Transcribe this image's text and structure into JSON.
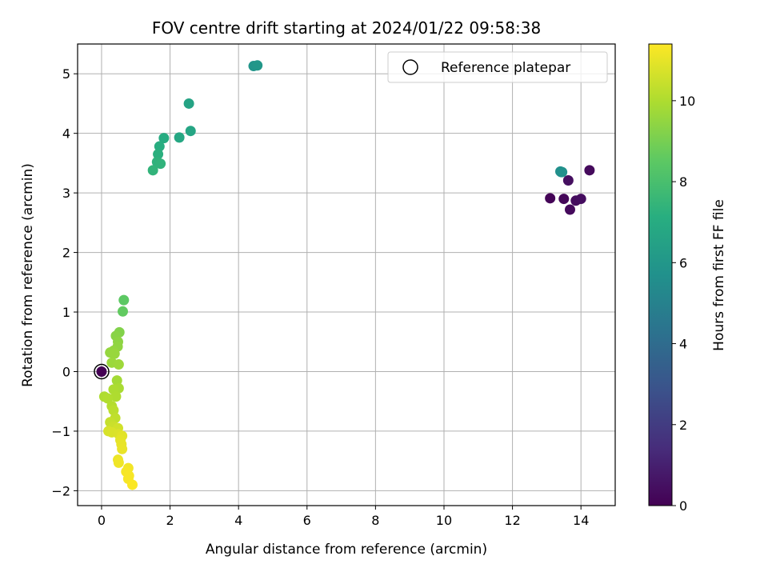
{
  "chart_data": {
    "type": "scatter",
    "title": "FOV centre drift starting at 2024/01/22 09:58:38",
    "xlabel": "Angular distance from reference (arcmin)",
    "ylabel": "Rotation from reference (arcmin)",
    "xlim": [
      -0.7,
      15.0
    ],
    "ylim": [
      -2.25,
      5.5
    ],
    "xticks": [
      0,
      2,
      4,
      6,
      8,
      10,
      12,
      14
    ],
    "yticks": [
      -2,
      -1,
      0,
      1,
      2,
      3,
      4,
      5
    ],
    "grid": true,
    "legend": {
      "placement": "top-right",
      "entries": [
        "Reference platepar"
      ]
    },
    "colorbar": {
      "label": "Hours from first FF file",
      "range": [
        0,
        11.4
      ],
      "ticks": [
        0,
        2,
        4,
        6,
        8,
        10
      ],
      "colormap": "viridis"
    },
    "reference_point": {
      "x": 0,
      "y": 0
    },
    "points": [
      {
        "x": 13.1,
        "y": 2.91,
        "c": 0.1
      },
      {
        "x": 13.5,
        "y": 2.9,
        "c": 0.2
      },
      {
        "x": 13.68,
        "y": 2.72,
        "c": 0.3
      },
      {
        "x": 13.85,
        "y": 2.87,
        "c": 0.35
      },
      {
        "x": 14.0,
        "y": 2.9,
        "c": 0.4
      },
      {
        "x": 13.63,
        "y": 3.21,
        "c": 0.45
      },
      {
        "x": 14.25,
        "y": 3.38,
        "c": 0.3
      },
      {
        "x": 13.42,
        "y": 3.35,
        "c": 5.5
      },
      {
        "x": 13.4,
        "y": 3.36,
        "c": 5.6
      },
      {
        "x": 13.45,
        "y": 3.35,
        "c": 5.7
      },
      {
        "x": 4.44,
        "y": 5.13,
        "c": 5.9
      },
      {
        "x": 4.55,
        "y": 5.14,
        "c": 6.0
      },
      {
        "x": 2.55,
        "y": 4.5,
        "c": 6.6
      },
      {
        "x": 2.6,
        "y": 4.04,
        "c": 6.7
      },
      {
        "x": 2.27,
        "y": 3.93,
        "c": 6.8
      },
      {
        "x": 1.82,
        "y": 3.92,
        "c": 7.0
      },
      {
        "x": 1.69,
        "y": 3.78,
        "c": 7.1
      },
      {
        "x": 1.65,
        "y": 3.65,
        "c": 7.2
      },
      {
        "x": 1.62,
        "y": 3.52,
        "c": 7.3
      },
      {
        "x": 1.72,
        "y": 3.49,
        "c": 7.35
      },
      {
        "x": 1.5,
        "y": 3.38,
        "c": 7.4
      },
      {
        "x": 0.65,
        "y": 1.2,
        "c": 8.5
      },
      {
        "x": 0.62,
        "y": 1.01,
        "c": 8.6
      },
      {
        "x": 0.52,
        "y": 0.66,
        "c": 9.2
      },
      {
        "x": 0.42,
        "y": 0.6,
        "c": 9.3
      },
      {
        "x": 0.48,
        "y": 0.5,
        "c": 9.4
      },
      {
        "x": 0.47,
        "y": 0.42,
        "c": 9.45
      },
      {
        "x": 0.35,
        "y": 0.35,
        "c": 9.5
      },
      {
        "x": 0.25,
        "y": 0.32,
        "c": 9.55
      },
      {
        "x": 0.38,
        "y": 0.3,
        "c": 9.6
      },
      {
        "x": 0.3,
        "y": 0.15,
        "c": 9.65
      },
      {
        "x": 0.5,
        "y": 0.12,
        "c": 9.7
      },
      {
        "x": 0.45,
        "y": -0.15,
        "c": 9.8
      },
      {
        "x": 0.5,
        "y": -0.28,
        "c": 9.9
      },
      {
        "x": 0.35,
        "y": -0.3,
        "c": 9.95
      },
      {
        "x": 0.42,
        "y": -0.42,
        "c": 10.0
      },
      {
        "x": 0.08,
        "y": -0.42,
        "c": 10.0
      },
      {
        "x": 0.18,
        "y": -0.45,
        "c": 10.05
      },
      {
        "x": 0.3,
        "y": -0.58,
        "c": 10.1
      },
      {
        "x": 0.35,
        "y": -0.65,
        "c": 10.2
      },
      {
        "x": 0.4,
        "y": -0.78,
        "c": 10.3
      },
      {
        "x": 0.25,
        "y": -0.85,
        "c": 10.4
      },
      {
        "x": 0.35,
        "y": -0.92,
        "c": 10.5
      },
      {
        "x": 0.48,
        "y": -0.95,
        "c": 10.6
      },
      {
        "x": 0.2,
        "y": -1.0,
        "c": 10.7
      },
      {
        "x": 0.3,
        "y": -1.02,
        "c": 10.75
      },
      {
        "x": 0.5,
        "y": -1.05,
        "c": 10.8
      },
      {
        "x": 0.6,
        "y": -1.08,
        "c": 10.9
      },
      {
        "x": 0.55,
        "y": -1.15,
        "c": 10.95
      },
      {
        "x": 0.58,
        "y": -1.22,
        "c": 11.0
      },
      {
        "x": 0.6,
        "y": -1.3,
        "c": 11.05
      },
      {
        "x": 0.48,
        "y": -1.48,
        "c": 11.1
      },
      {
        "x": 0.5,
        "y": -1.53,
        "c": 11.15
      },
      {
        "x": 0.78,
        "y": -1.62,
        "c": 11.2
      },
      {
        "x": 0.72,
        "y": -1.68,
        "c": 11.25
      },
      {
        "x": 0.8,
        "y": -1.75,
        "c": 11.3
      },
      {
        "x": 0.78,
        "y": -1.8,
        "c": 11.3
      },
      {
        "x": 0.9,
        "y": -1.9,
        "c": 11.35
      }
    ]
  }
}
